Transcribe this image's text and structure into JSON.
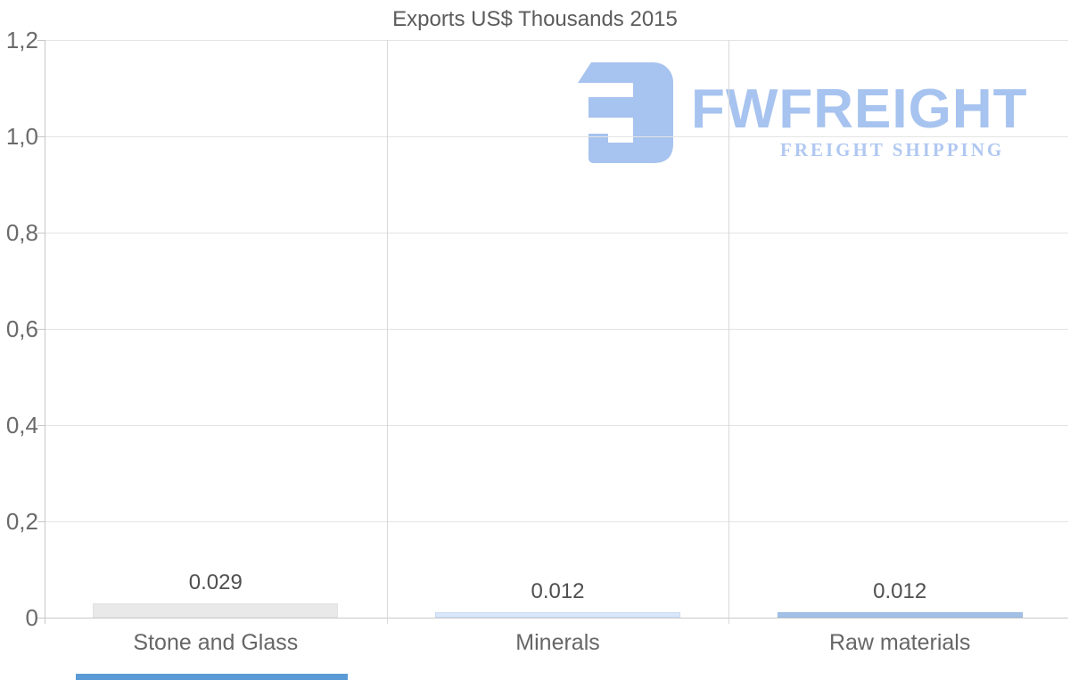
{
  "chart_data": {
    "type": "bar",
    "title": "Exports US$ Thousands 2015",
    "categories": [
      "Stone and Glass",
      "Minerals",
      "Raw materials"
    ],
    "values": [
      0.029,
      0.012,
      0.012
    ],
    "value_labels": [
      "0.029",
      "0.012",
      "0.012"
    ],
    "bar_colors": [
      "#e9e9e9",
      "#d9e7f8",
      "#a3c1e6"
    ],
    "bar_border_colors": [
      "#e2e2e2",
      "#c5daf3",
      "#98b8e0"
    ],
    "ylim": [
      0,
      1.2
    ],
    "y_ticks": [
      0,
      0.2,
      0.4,
      0.6,
      0.8,
      1.0,
      1.2
    ],
    "y_tick_labels": [
      "0",
      "0,2",
      "0,4",
      "0,6",
      "0,8",
      "1,0",
      "1,2"
    ],
    "grid": true,
    "legend": false,
    "xlabel": "",
    "ylabel": "",
    "decimal_separator_axis": ",",
    "decimal_separator_labels": "."
  },
  "watermark": {
    "brand": "FWFREIGHT",
    "tagline": "FREIGHT SHIPPING",
    "brand_color": "#a7c3ef",
    "tagline_color": "#b0c8f1"
  },
  "loading_bar": {
    "color": "#5b9bd5"
  }
}
